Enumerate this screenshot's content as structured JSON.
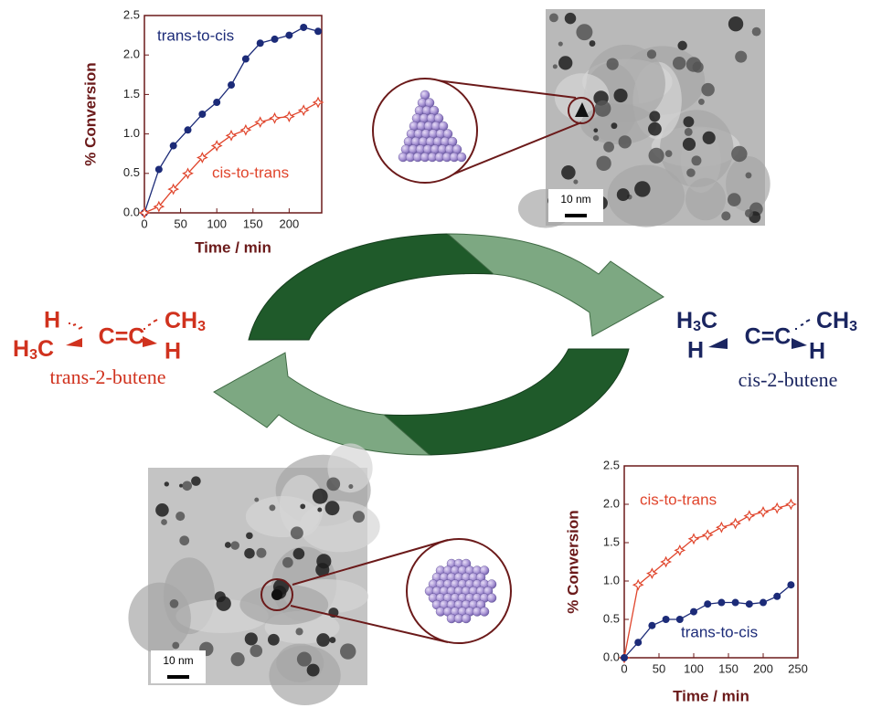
{
  "chart_data": [
    {
      "type": "line",
      "xlabel": "Time / min",
      "ylabel": "% Conversion",
      "x": [
        0,
        20,
        40,
        60,
        80,
        100,
        120,
        140,
        160,
        180,
        200,
        220,
        240
      ],
      "series": [
        {
          "name": "trans-to-cis",
          "color": "#1c2b78",
          "values": [
            0,
            0.55,
            0.85,
            1.05,
            1.25,
            1.4,
            1.62,
            1.95,
            2.15,
            2.2,
            2.25,
            2.35,
            2.3
          ]
        },
        {
          "name": "cis-to-trans",
          "color": "#e0452c",
          "values": [
            0,
            0.08,
            0.3,
            0.5,
            0.7,
            0.85,
            0.98,
            1.05,
            1.15,
            1.2,
            1.22,
            1.3,
            1.4
          ]
        }
      ],
      "xlim": [
        0,
        245
      ],
      "ylim": [
        0,
        2.5
      ],
      "xticks": [
        0,
        50,
        100,
        150,
        200
      ],
      "yticks": [
        {
          "value": 0,
          "label": "0.0"
        },
        0.5,
        {
          "value": 1,
          "label": "1.0"
        },
        1.5,
        {
          "value": 2,
          "label": "2.0"
        },
        2.5
      ]
    },
    {
      "type": "line",
      "xlabel": "Time / min",
      "ylabel": "% Conversion",
      "x": [
        0,
        20,
        40,
        60,
        80,
        100,
        120,
        140,
        160,
        180,
        200,
        220,
        240
      ],
      "series": [
        {
          "name": "cis-to-trans",
          "color": "#e0452c",
          "values": [
            0,
            0.95,
            1.1,
            1.25,
            1.4,
            1.55,
            1.6,
            1.7,
            1.75,
            1.85,
            1.9,
            1.95,
            2.0
          ]
        },
        {
          "name": "trans-to-cis",
          "color": "#1c2b78",
          "values": [
            0,
            0.2,
            0.42,
            0.5,
            0.5,
            0.6,
            0.7,
            0.72,
            0.72,
            0.7,
            0.72,
            0.8,
            0.95
          ]
        }
      ],
      "xlim": [
        0,
        250
      ],
      "ylim": [
        0,
        2.5
      ],
      "xticks": [
        0,
        50,
        100,
        150,
        200,
        250
      ],
      "yticks": [
        {
          "value": 0,
          "label": "0.0"
        },
        0.5,
        {
          "value": 1,
          "label": "1.0"
        },
        1.5,
        {
          "value": 2,
          "label": "2.0"
        },
        2.5
      ]
    }
  ],
  "molecules": [
    {
      "name": "trans-2-butene",
      "top_left": "H",
      "bottom_left": "H",
      "bottom_left_sub": "3",
      "bottom_left_end": "C",
      "center": "C=C",
      "top_right": "CH",
      "top_right_sub": "3",
      "bottom_right": "H"
    },
    {
      "name": "cis-2-butene",
      "top_left": "H",
      "top_left_sub": "3",
      "top_left_end": "C",
      "bottom_left": "H",
      "center": "C=C",
      "top_right": "CH",
      "top_right_sub": "3",
      "bottom_right": "H"
    }
  ],
  "images": [
    {
      "scale_label": "10 nm"
    },
    {
      "scale_label": "10 nm"
    }
  ]
}
